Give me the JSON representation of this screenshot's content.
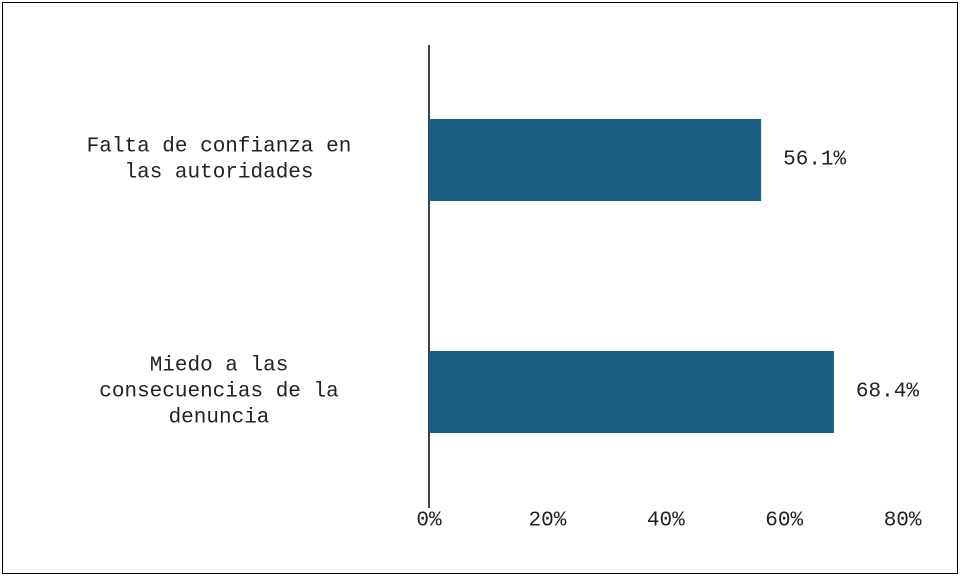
{
  "chart_data": {
    "type": "bar",
    "orientation": "horizontal",
    "categories": [
      [
        "Falta de confianza en",
        "las autoridades"
      ],
      [
        "Miedo a las",
        "consecuencias de la",
        "denuncia"
      ]
    ],
    "values": [
      56.1,
      68.4
    ],
    "data_labels": [
      "56.1%",
      "68.4%"
    ],
    "xlim": [
      0,
      80
    ],
    "x_ticks": [
      0,
      20,
      40,
      60,
      80
    ],
    "x_tick_labels": [
      "0%",
      "20%",
      "40%",
      "60%",
      "80%"
    ],
    "bar_color": "#1a5f7f",
    "grid": false,
    "legend": "none",
    "title": "",
    "xlabel": "",
    "ylabel": ""
  }
}
